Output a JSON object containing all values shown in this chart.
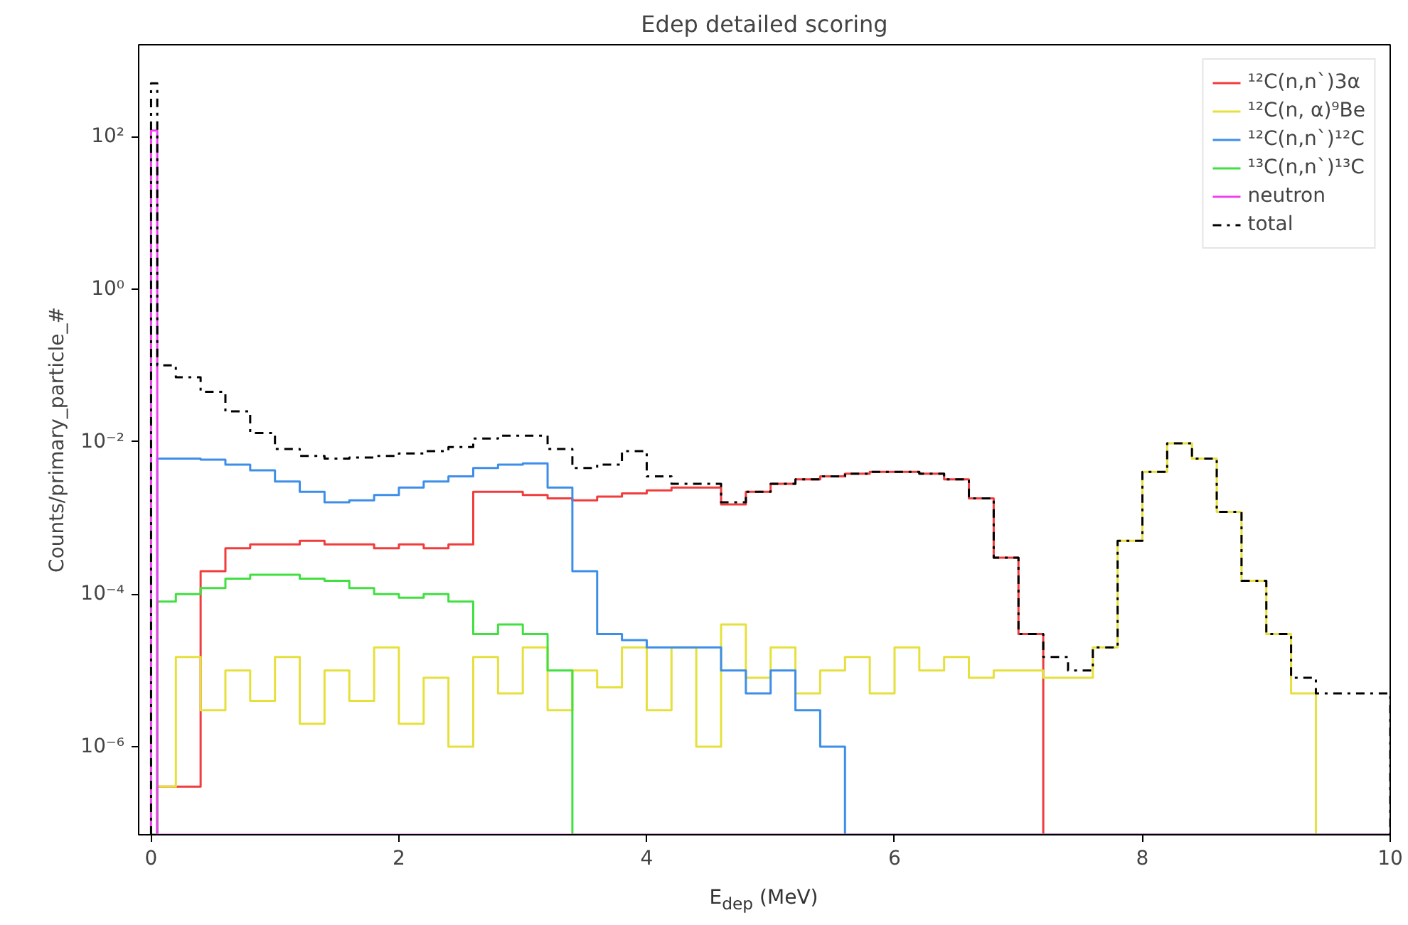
{
  "chart_data": {
    "type": "histogram",
    "title": "Edep detailed scoring",
    "xlabel": "E$_{dep}$ (MeV)",
    "ylabel": "Counts/primary_particle_#",
    "bins": [
      0,
      0.05,
      0.2,
      0.4,
      0.6,
      0.8,
      1.0,
      1.2,
      1.4,
      1.6,
      1.8,
      2.0,
      2.2,
      2.4,
      2.6,
      2.8,
      3.0,
      3.2,
      3.4,
      3.6,
      3.8,
      4.0,
      4.2,
      4.4,
      4.6,
      4.8,
      5.0,
      5.2,
      5.4,
      5.6,
      5.8,
      6.0,
      6.2,
      6.4,
      6.6,
      6.8,
      7.0,
      7.2,
      7.4,
      7.6,
      7.8,
      8.0,
      8.2,
      8.4,
      8.6,
      8.8,
      9.0,
      9.2,
      9.4,
      9.6,
      9.8,
      10.0
    ],
    "series": [
      {
        "name": "¹²C(n,n`)3α",
        "color": "#f03c3c",
        "values": [
          null,
          3e-07,
          3e-07,
          0.0002,
          0.0004,
          0.00045,
          0.00045,
          0.0005,
          0.00045,
          0.00045,
          0.0004,
          0.00045,
          0.0004,
          0.00045,
          0.0022,
          0.0022,
          0.002,
          0.0018,
          0.0017,
          0.0019,
          0.0021,
          0.0023,
          0.0025,
          0.0025,
          0.0015,
          0.0022,
          0.0028,
          0.0032,
          0.0035,
          0.0038,
          0.004,
          0.004,
          0.0038,
          0.0032,
          0.0018,
          0.0003,
          3e-05,
          null,
          null,
          null,
          null,
          null,
          null,
          null,
          null,
          null,
          null,
          null,
          null,
          null,
          null
        ]
      },
      {
        "name": "¹²C(n, α)⁹Be",
        "color": "#e6e03c",
        "values": [
          null,
          3e-07,
          1.5e-05,
          3e-06,
          1e-05,
          4e-06,
          1.5e-05,
          2e-06,
          1e-05,
          4e-06,
          2e-05,
          2e-06,
          8e-06,
          1e-06,
          1.5e-05,
          5e-06,
          2e-05,
          3e-06,
          1e-05,
          6e-06,
          2e-05,
          3e-06,
          2e-05,
          1e-06,
          4e-05,
          8e-06,
          2e-05,
          5e-06,
          1e-05,
          1.5e-05,
          5e-06,
          2e-05,
          1e-05,
          1.5e-05,
          8e-06,
          1e-05,
          1e-05,
          8e-06,
          8e-06,
          2e-05,
          0.0005,
          0.004,
          0.0095,
          0.006,
          0.0012,
          0.00015,
          3e-05,
          5e-06,
          null,
          null,
          null
        ]
      },
      {
        "name": "¹²C(n,n`)¹²C",
        "color": "#3d8ee8",
        "values": [
          null,
          0.006,
          0.006,
          0.0058,
          0.005,
          0.0042,
          0.003,
          0.0022,
          0.0016,
          0.0017,
          0.002,
          0.0025,
          0.003,
          0.0035,
          0.0045,
          0.005,
          0.0052,
          0.0025,
          0.0002,
          3e-05,
          2.5e-05,
          2e-05,
          2e-05,
          2e-05,
          1e-05,
          5e-06,
          1e-05,
          3e-06,
          1e-06,
          null,
          null,
          null,
          null,
          null,
          null,
          null,
          null,
          null,
          null,
          null,
          null,
          null,
          null,
          null,
          null,
          null,
          null,
          null,
          null,
          null,
          null
        ]
      },
      {
        "name": "¹³C(n,n`)¹³C",
        "color": "#40e040",
        "values": [
          null,
          8e-05,
          0.0001,
          0.00012,
          0.00016,
          0.00018,
          0.00018,
          0.00016,
          0.00015,
          0.00012,
          0.0001,
          9e-05,
          0.0001,
          8e-05,
          3e-05,
          4e-05,
          3e-05,
          1e-05,
          null,
          null,
          null,
          null,
          null,
          null,
          null,
          null,
          null,
          null,
          null,
          null,
          null,
          null,
          null,
          null,
          null,
          null,
          null,
          null,
          null,
          null,
          null,
          null,
          null,
          null,
          null,
          null,
          null,
          null,
          null,
          null,
          null
        ]
      },
      {
        "name": "neutron",
        "color": "#f040f0",
        "values": [
          120,
          null,
          null,
          null,
          null,
          null,
          null,
          null,
          null,
          null,
          null,
          null,
          null,
          null,
          null,
          null,
          null,
          null,
          null,
          null,
          null,
          null,
          null,
          null,
          null,
          null,
          null,
          null,
          null,
          null,
          null,
          null,
          null,
          null,
          null,
          null,
          null,
          null,
          null,
          null,
          null,
          null,
          null,
          null,
          null,
          null,
          null,
          null,
          null,
          null,
          null
        ]
      },
      {
        "name": "total",
        "color": "#000000",
        "line_style": "dashdot",
        "values": [
          500,
          0.1,
          0.07,
          0.045,
          0.025,
          0.013,
          0.008,
          0.0065,
          0.006,
          0.0062,
          0.0065,
          0.007,
          0.0075,
          0.0085,
          0.011,
          0.012,
          0.012,
          0.008,
          0.0045,
          0.005,
          0.0075,
          0.0035,
          0.0028,
          0.0028,
          0.0016,
          0.0022,
          0.0028,
          0.0032,
          0.0035,
          0.0038,
          0.004,
          0.004,
          0.0038,
          0.0032,
          0.0018,
          0.0003,
          3e-05,
          1.5e-05,
          1e-05,
          2e-05,
          0.0005,
          0.004,
          0.0095,
          0.006,
          0.0012,
          0.00015,
          3e-05,
          8e-06,
          5e-06,
          5e-06,
          5e-06
        ]
      }
    ],
    "xlim": [
      -0.1,
      10
    ],
    "ylim": [
      7e-08,
      1600
    ],
    "xticks": [
      0,
      2,
      4,
      6,
      8,
      10
    ],
    "yticks": [
      {
        "value": 1e-06,
        "label": "10⁻⁶"
      },
      {
        "value": 0.0001,
        "label": "10⁻⁴"
      },
      {
        "value": 0.01,
        "label": "10⁻²"
      },
      {
        "value": 1,
        "label": "10⁰"
      },
      {
        "value": 100,
        "label": "10²"
      }
    ],
    "log": "y",
    "grid": false,
    "legend": "top right"
  }
}
